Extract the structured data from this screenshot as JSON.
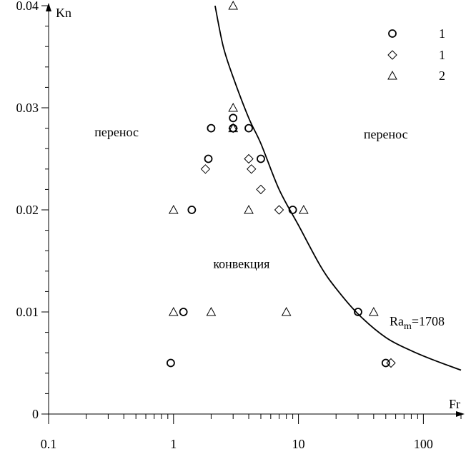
{
  "chart_data": {
    "type": "scatter",
    "x_scale": "log",
    "xlim": [
      0.1,
      200
    ],
    "ylim": [
      0,
      0.04
    ],
    "xlabel": "Fr",
    "ylabel": "Kn",
    "x_ticks": [
      "0.1",
      "1",
      "10",
      "100"
    ],
    "y_ticks": [
      "0",
      "0.01",
      "0.02",
      "0.03",
      "0.04"
    ],
    "grid": false,
    "series": [
      {
        "name": "1",
        "marker": "circle",
        "points": [
          [
            0.95,
            0.005
          ],
          [
            1.2,
            0.01
          ],
          [
            1.4,
            0.02
          ],
          [
            1.9,
            0.025
          ],
          [
            2.0,
            0.028
          ],
          [
            3.0,
            0.029
          ],
          [
            3.0,
            0.028
          ],
          [
            4.0,
            0.028
          ],
          [
            5.0,
            0.025
          ],
          [
            9.0,
            0.02
          ],
          [
            30,
            0.01
          ],
          [
            50,
            0.005
          ]
        ]
      },
      {
        "name": "1",
        "marker": "diamond",
        "points": [
          [
            1.8,
            0.024
          ],
          [
            3.0,
            0.028
          ],
          [
            4.0,
            0.025
          ],
          [
            4.2,
            0.024
          ],
          [
            5.0,
            0.022
          ],
          [
            7.0,
            0.02
          ],
          [
            55,
            0.005
          ]
        ]
      },
      {
        "name": "2",
        "marker": "triangle",
        "points": [
          [
            1.0,
            0.02
          ],
          [
            1.0,
            0.01
          ],
          [
            2.0,
            0.01
          ],
          [
            3.0,
            0.04
          ],
          [
            3.0,
            0.03
          ],
          [
            3.0,
            0.028
          ],
          [
            4.0,
            0.02
          ],
          [
            8.0,
            0.01
          ],
          [
            11.0,
            0.02
          ],
          [
            40,
            0.01
          ]
        ]
      }
    ],
    "curve": {
      "label_main": "Ra",
      "label_sub": "m",
      "label_rest": "=1708",
      "points": [
        [
          2.15,
          0.04
        ],
        [
          2.5,
          0.036
        ],
        [
          3.0,
          0.033
        ],
        [
          4.0,
          0.029
        ],
        [
          5.0,
          0.0265
        ],
        [
          7.0,
          0.022
        ],
        [
          10.0,
          0.0185
        ],
        [
          15.0,
          0.0145
        ],
        [
          20.0,
          0.0123
        ],
        [
          30.0,
          0.0098
        ],
        [
          50.0,
          0.0075
        ],
        [
          80.0,
          0.0062
        ],
        [
          120.0,
          0.0053
        ],
        [
          200.0,
          0.0043
        ]
      ]
    },
    "annotations": [
      {
        "text": "перенос",
        "x": 0.35,
        "y": 0.0272
      },
      {
        "text": "перенос",
        "x": 50,
        "y": 0.027
      },
      {
        "text": "конвекция",
        "x": 3.5,
        "y": 0.0143
      }
    ]
  }
}
